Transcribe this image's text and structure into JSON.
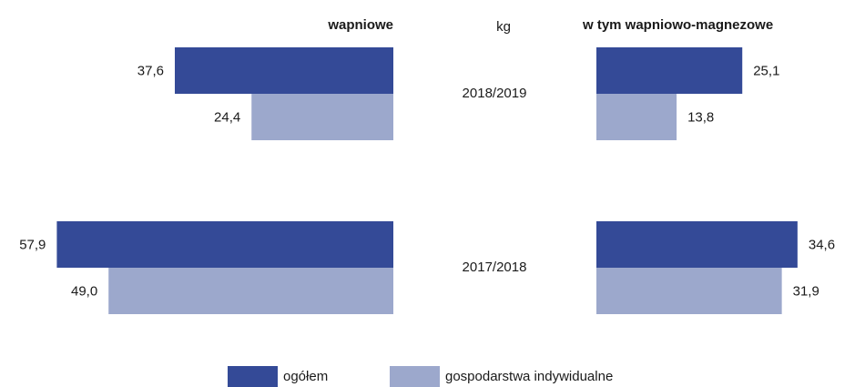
{
  "chart_data": [
    {
      "type": "bar",
      "title": "wapniowe",
      "unit": "kg",
      "direction": "left",
      "categories": [
        "2018/2019",
        "2017/2018"
      ],
      "xlim": [
        0,
        60
      ],
      "series": [
        {
          "name": "ogółem",
          "color": "#344a97",
          "values": [
            37.6,
            57.9
          ],
          "value_labels": [
            "37,6",
            "57,9"
          ]
        },
        {
          "name": "gospodarstwa indywidualne",
          "color": "#9ca8cc",
          "values": [
            24.4,
            49.0
          ],
          "value_labels": [
            "24,4",
            "49,0"
          ]
        }
      ]
    },
    {
      "type": "bar",
      "title": "w tym wapniowo-magnezowe",
      "direction": "right",
      "xlim": [
        0,
        60
      ],
      "series": [
        {
          "color": "#344a97",
          "values": [
            25.1,
            34.6
          ],
          "value_labels": [
            "25,1",
            "34,6"
          ]
        },
        {
          "color": "#9ca8cc",
          "values": [
            13.8,
            31.9
          ],
          "value_labels": [
            "13,8",
            "31,9"
          ]
        }
      ]
    }
  ]
}
